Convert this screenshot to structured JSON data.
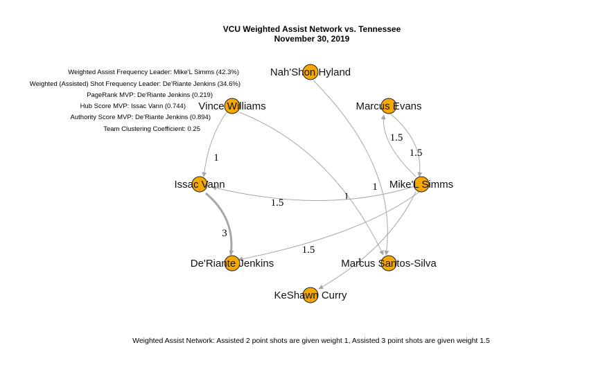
{
  "title": {
    "line1": "VCU Weighted Assist Network vs. Tennessee",
    "line2": "November 30, 2019"
  },
  "stats": [
    "Weighted Assist Frequency Leader: Mike'L Simms (42.3%)",
    "Weighted (Assisted) Shot Frequency Leader: De'Riante Jenkins (34.6%)",
    "PageRank MVP: De'Riante Jenkins (0.219)",
    "Hub Score MVP: Issac Vann (0.744)",
    "Authority Score MVP: De'Riante Jenkins (0.894)",
    "Team Clustering Coefficient: 0.25"
  ],
  "footer": "Weighted Assist Network: Assisted 2 point shots are given weight 1, Assisted 3 point shots are given weight 1.5",
  "colors": {
    "node": "#f5a800",
    "edge": "#a6a6a6"
  },
  "nodes": [
    {
      "id": "hyland",
      "label": "Nah'Shon Hyland"
    },
    {
      "id": "evans",
      "label": "Marcus Evans"
    },
    {
      "id": "williams",
      "label": "Vince Williams"
    },
    {
      "id": "simms",
      "label": "Mike'L Simms"
    },
    {
      "id": "vann",
      "label": "Issac Vann"
    },
    {
      "id": "jenkins",
      "label": "De'Riante Jenkins"
    },
    {
      "id": "santos",
      "label": "Marcus Santos-Silva"
    },
    {
      "id": "curry",
      "label": "KeShawn Curry"
    }
  ],
  "edges": [
    {
      "from": "williams",
      "to": "vann",
      "weight": "1"
    },
    {
      "from": "williams",
      "to": "santos",
      "weight": "1"
    },
    {
      "from": "hyland",
      "to": "santos",
      "weight": "1"
    },
    {
      "from": "vann",
      "to": "jenkins",
      "weight": "3"
    },
    {
      "from": "simms",
      "to": "vann",
      "weight": "1.5"
    },
    {
      "from": "simms",
      "to": "jenkins",
      "weight": "1.5"
    },
    {
      "from": "simms",
      "to": "curry",
      "weight": "1"
    },
    {
      "from": "simms",
      "to": "evans",
      "weight": "1.5"
    },
    {
      "from": "evans",
      "to": "simms",
      "weight": "1.5"
    }
  ]
}
